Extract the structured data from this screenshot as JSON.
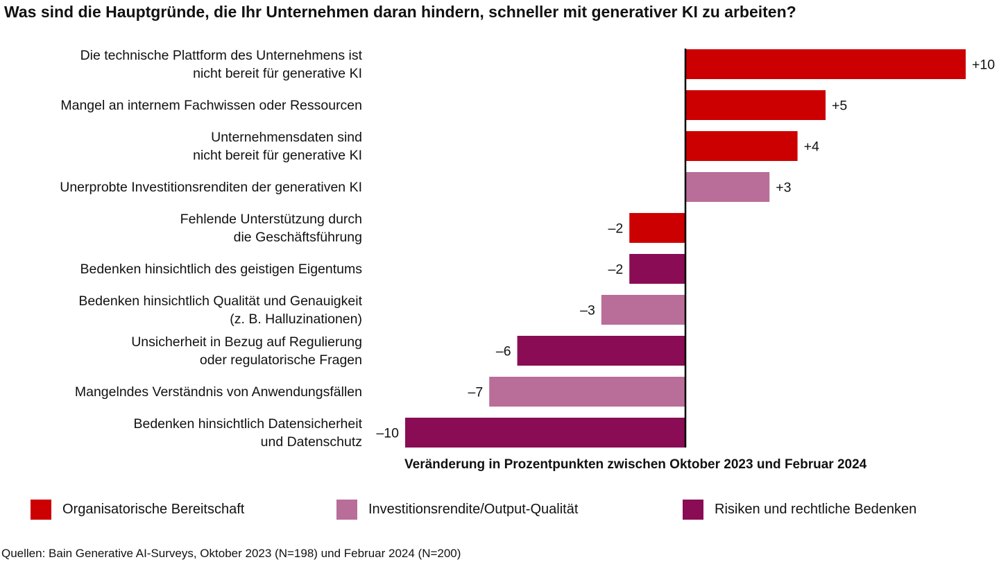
{
  "chart_data": {
    "type": "bar",
    "orientation": "horizontal",
    "title": "Was sind die Hauptgründe, die Ihr Unternehmen daran hindern, schneller mit generativer KI zu arbeiten?",
    "xlabel": "Veränderung in Prozentpunkten zwischen Oktober 2023 und Februar 2024",
    "xlim": [
      -10,
      10
    ],
    "categories": [
      [
        "Die technische Plattform des Unternehmens ist",
        "nicht bereit für generative KI"
      ],
      [
        "Mangel an internem Fachwissen oder Ressourcen"
      ],
      [
        "Unternehmensdaten sind",
        "nicht bereit für generative KI"
      ],
      [
        "Unerprobte Investitionsrenditen der generativen KI"
      ],
      [
        "Fehlende Unterstützung durch",
        "die Geschäftsführung"
      ],
      [
        "Bedenken hinsichtlich des geistigen Eigentums"
      ],
      [
        "Bedenken hinsichtlich Qualität und Genauigkeit",
        "(z. B. Halluzinationen)"
      ],
      [
        "Unsicherheit in Bezug auf Regulierung",
        "oder regulatorische Fragen"
      ],
      [
        "Mangelndes Verständnis von Anwendungsfällen"
      ],
      [
        "Bedenken hinsichtlich Datensicherheit",
        "und Datenschutz"
      ]
    ],
    "values": [
      10,
      5,
      4,
      3,
      -2,
      -2,
      -3,
      -6,
      -7,
      -10
    ],
    "value_labels": [
      "+10",
      "+5",
      "+4",
      "+3",
      "–2",
      "–2",
      "–3",
      "–6",
      "–7",
      "–10"
    ],
    "groups": [
      0,
      0,
      0,
      1,
      0,
      2,
      1,
      2,
      1,
      2
    ],
    "legend": [
      {
        "name": "Organisatorische Bereitschaft",
        "color": "#CC0000"
      },
      {
        "name": "Investitionsrendite/Output-Qualität",
        "color": "#B86E98"
      },
      {
        "name": "Risiken und rechtliche Bedenken",
        "color": "#8A0C55"
      }
    ],
    "legend_position": "bottom"
  },
  "source": "Quellen: Bain Generative AI-Surveys, Oktober 2023 (N=198) und Februar 2024 (N=200)"
}
